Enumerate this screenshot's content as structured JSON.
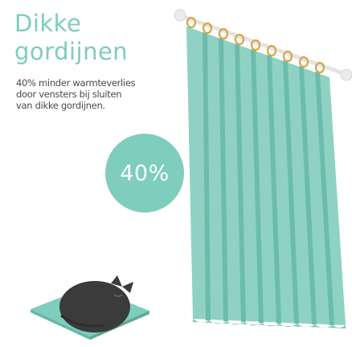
{
  "title_lines": [
    "Dikke",
    "gordijnen"
  ],
  "subtitle_lines": [
    "40% minder warmteverlies",
    "door vensters bij sluiten",
    "van dikke gordijnen."
  ],
  "badge": {
    "label": "40%"
  },
  "colors": {
    "accent": "#7ecdbd",
    "curtain": "#8fd2c3",
    "curtain_shadow": "#65b9a9",
    "rod": "#e6e6e6",
    "ring": "#d9a544",
    "cat": "#3b3b3b",
    "cushion": "#7ecdbd",
    "text": "#4a4a4a"
  },
  "illustration": {
    "curtain_icon": "curtain-icon",
    "rod_icon": "curtain-rod-icon",
    "cat_icon": "sleeping-cat-icon",
    "cushion_icon": "cushion-icon"
  }
}
